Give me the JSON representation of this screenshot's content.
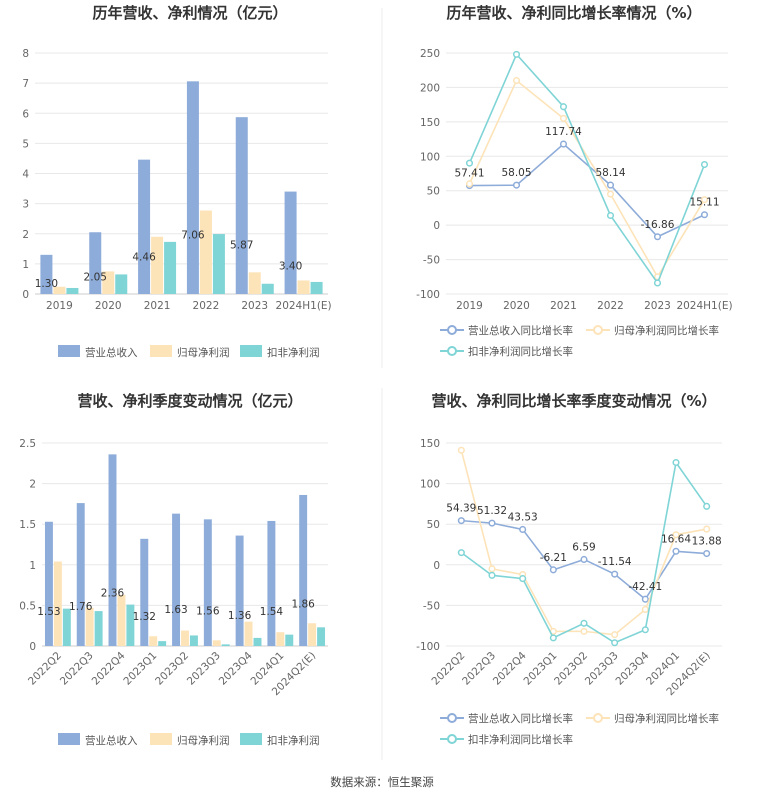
{
  "source": "数据来源：恒生聚源",
  "colors": {
    "revenue": "#8eacd9",
    "net_profit": "#fde3b8",
    "deducted_profit": "#7fd4d6"
  },
  "chart_data": [
    {
      "type": "bar",
      "title": "历年营收、净利情况（亿元）",
      "categories": [
        "2019",
        "2020",
        "2021",
        "2022",
        "2023",
        "2024H1(E)"
      ],
      "ylim": [
        0,
        8
      ],
      "yticks": [
        0,
        1,
        2,
        3,
        4,
        5,
        6,
        7,
        8
      ],
      "series": [
        {
          "name": "营业总收入",
          "values": [
            1.3,
            2.05,
            4.46,
            7.06,
            5.87,
            3.4
          ],
          "labels": [
            "1.30",
            "2.05",
            "4.46",
            "7.06",
            "5.87",
            "3.40"
          ]
        },
        {
          "name": "归母净利润",
          "values": [
            0.24,
            0.75,
            1.9,
            2.77,
            0.72,
            0.45
          ]
        },
        {
          "name": "扣非净利润",
          "values": [
            0.2,
            0.65,
            1.73,
            1.99,
            0.34,
            0.4
          ]
        }
      ],
      "legend": "bottom",
      "grid": true
    },
    {
      "type": "line",
      "title": "历年营收、净利同比增长率情况（%）",
      "categories": [
        "2019",
        "2020",
        "2021",
        "2022",
        "2023",
        "2024H1(E)"
      ],
      "ylim": [
        -100,
        250
      ],
      "yticks": [
        -100,
        -50,
        0,
        50,
        100,
        150,
        200,
        250
      ],
      "series": [
        {
          "name": "营业总收入同比增长率",
          "values": [
            57.41,
            58.05,
            117.74,
            58.14,
            -16.86,
            15.11
          ],
          "labels": [
            "57.41",
            "58.05",
            "117.74",
            "58.14",
            "-16.86",
            "15.11"
          ]
        },
        {
          "name": "归母净利润同比增长率",
          "values": [
            60,
            210,
            155,
            45,
            -75,
            37
          ]
        },
        {
          "name": "扣非净利润同比增长率",
          "values": [
            90,
            248,
            172,
            14,
            -84,
            88
          ]
        }
      ],
      "legend": "bottom",
      "grid": true
    },
    {
      "type": "bar",
      "title": "营收、净利季度变动情况（亿元）",
      "categories": [
        "2022Q2",
        "2022Q3",
        "2022Q4",
        "2023Q1",
        "2023Q2",
        "2023Q3",
        "2023Q4",
        "2024Q1",
        "2024Q2(E)"
      ],
      "ylim": [
        0,
        2.5
      ],
      "yticks": [
        0,
        0.5,
        1,
        1.5,
        2,
        2.5
      ],
      "series": [
        {
          "name": "营业总收入",
          "values": [
            1.53,
            1.76,
            2.36,
            1.32,
            1.63,
            1.56,
            1.36,
            1.54,
            1.86
          ],
          "labels": [
            "1.53",
            "1.76",
            "2.36",
            "1.32",
            "1.63",
            "1.56",
            "1.36",
            "1.54",
            "1.86"
          ]
        },
        {
          "name": "归母净利润",
          "values": [
            1.04,
            0.47,
            0.63,
            0.12,
            0.19,
            0.07,
            0.3,
            0.17,
            0.28
          ]
        },
        {
          "name": "扣非净利润",
          "values": [
            0.46,
            0.43,
            0.51,
            0.06,
            0.13,
            0.02,
            0.1,
            0.14,
            0.23
          ]
        }
      ],
      "legend": "bottom",
      "grid": true
    },
    {
      "type": "line",
      "title": "营收、净利同比增长率季度变动情况（%）",
      "categories": [
        "2022Q2",
        "2022Q3",
        "2022Q4",
        "2023Q1",
        "2023Q2",
        "2023Q3",
        "2023Q4",
        "2024Q1",
        "2024Q2(E)"
      ],
      "ylim": [
        -100,
        150
      ],
      "yticks": [
        -100,
        -50,
        0,
        50,
        100,
        150
      ],
      "series": [
        {
          "name": "营业总收入同比增长率",
          "values": [
            54.39,
            51.32,
            43.53,
            -6.21,
            6.59,
            -11.54,
            -42.41,
            16.64,
            13.88
          ],
          "labels": [
            "54.39",
            "51.32",
            "43.53",
            "-6.21",
            "6.59",
            "-11.54",
            "-42.41",
            "16.64",
            "13.88"
          ]
        },
        {
          "name": "归母净利润同比增长率",
          "values": [
            141,
            -5,
            -12,
            -82,
            -82,
            -86,
            -55,
            37,
            44
          ]
        },
        {
          "name": "扣非净利润同比增长率",
          "values": [
            15,
            -13,
            -17,
            -90,
            -72,
            -96,
            -80,
            126,
            72
          ]
        }
      ],
      "legend": "bottom",
      "grid": true
    }
  ]
}
